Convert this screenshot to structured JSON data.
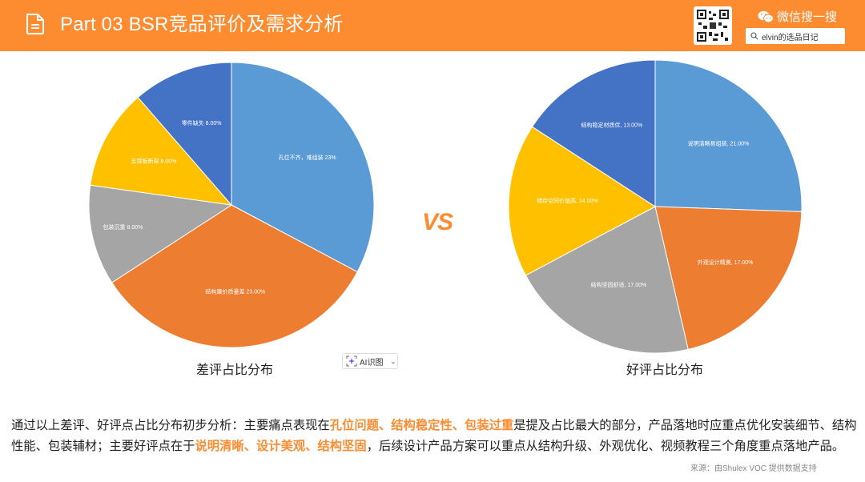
{
  "header": {
    "title": "Part 03  BSR竞品评价及需求分析",
    "wechat_label": "微信搜一搜",
    "search_text": "elvin的选品日记",
    "brand_color": "#fd8b30"
  },
  "vs_label": "VS",
  "ai_button": {
    "label": "AI识图"
  },
  "chart_data": [
    {
      "type": "pie",
      "title": "差评占比分布",
      "categories": [
        "孔位不齐，难组装",
        "结构廉价质量差",
        "包装沉重",
        "支撑板断裂",
        "零件缺失"
      ],
      "labels": [
        "孔位不齐，难组装 23%",
        "结构廉价质量差 23.00%",
        "包装沉重 8.00%",
        "支撑板断裂 8.00%",
        "零件缺失 8.00%"
      ],
      "values": [
        23,
        23,
        8,
        8,
        8
      ],
      "colors": [
        "#5b9bd5",
        "#ed7d31",
        "#a5a5a5",
        "#ffc000",
        "#4472c4"
      ],
      "start_angles_deg": [
        0,
        118,
        237,
        278,
        319,
        360
      ]
    },
    {
      "type": "pie",
      "title": "好评占比分布",
      "categories": [
        "说明清晰易组装",
        "外观设计精美",
        "结构坚固舒适",
        "储存空间价值高",
        "结构稳定材质优"
      ],
      "labels": [
        "说明清晰易组装, 21.00%",
        "外观设计精美, 17.00%",
        "结构坚固舒适, 17.00%",
        "储存空间价值高, 14.00%",
        "结构稳定材质优, 13.00%"
      ],
      "values": [
        21,
        17,
        17,
        14,
        13
      ],
      "colors": [
        "#5b9bd5",
        "#ed7d31",
        "#a5a5a5",
        "#ffc000",
        "#4472c4"
      ],
      "start_angles_deg": [
        0,
        92,
        167,
        242,
        303,
        360
      ]
    }
  ],
  "summary": {
    "p1": "通过以上差评、好评点占比分布初步分析：主要痛点表现在",
    "h1": "孔位问题、结构稳定性、包装过重",
    "p2": "是提及占比最大的部分，产品落地时应重点优化安装细节、结构性能、包装辅材；主要好评点在于",
    "h2": "说明清晰、设计美观、结构坚固",
    "p3": "，后续设计产品方案可以重点从结构升级、外观优化、视频教程三个角度重点落地产品。"
  },
  "source": "来源：由Shulex VOC 提供数据支持"
}
